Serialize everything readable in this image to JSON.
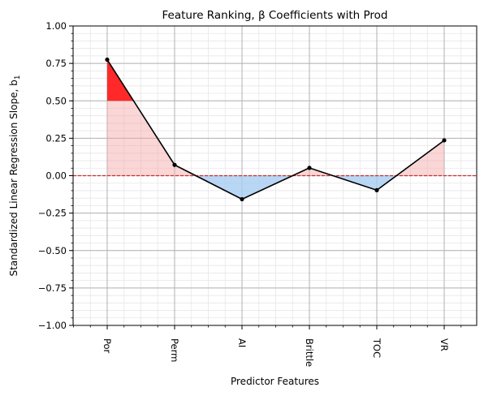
{
  "chart_data": {
    "type": "line",
    "title": "Feature Ranking, β Coefficients with Prod",
    "xlabel": "Predictor Features",
    "ylabel": "Standardized Linear Regression Slope, b",
    "ylabel_subscript": "1",
    "categories": [
      "Por",
      "Perm",
      "AI",
      "Brittle",
      "TOC",
      "VR"
    ],
    "values": [
      0.775,
      0.072,
      -0.157,
      0.052,
      -0.097,
      0.236
    ],
    "ylim": [
      -1.0,
      1.0
    ],
    "yticks": [
      -1.0,
      -0.75,
      -0.5,
      -0.25,
      0.0,
      0.25,
      0.5,
      0.75,
      1.0
    ],
    "ytick_labels": [
      "−1.00",
      "−0.75",
      "−0.50",
      "−0.25",
      "0.00",
      "0.25",
      "0.50",
      "0.75",
      "1.00"
    ],
    "significance_threshold": 0.5,
    "reference_line": 0.0,
    "grid": true,
    "colors": {
      "line": "#000000",
      "positive_fill": "#f4a3a3",
      "negative_fill": "#a6cdf2",
      "above_threshold_fill": "#ff2020",
      "zero_line": "#d62728",
      "major_grid": "#b0b0b0",
      "minor_grid": "#e6e6e6"
    }
  }
}
